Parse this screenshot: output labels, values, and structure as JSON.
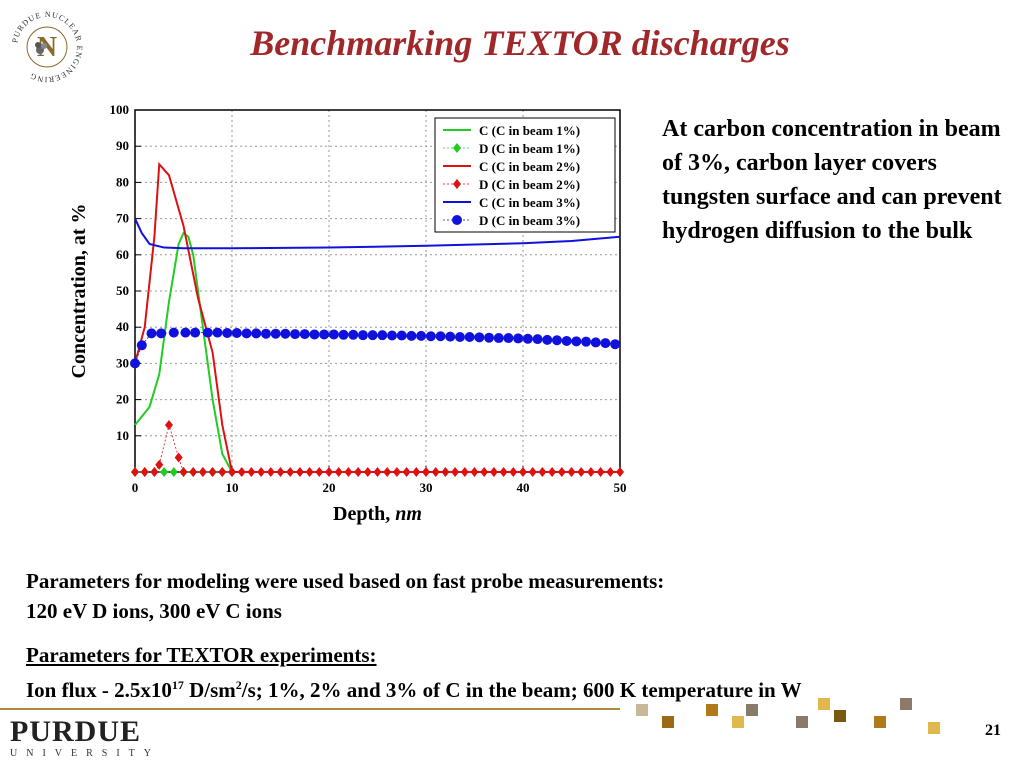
{
  "title": "Benchmarking TEXTOR discharges",
  "logo": {
    "ring_text": "PURDUE NUCLEAR ENGINEERING",
    "letter": "N"
  },
  "side_text": "At carbon concentration in beam of 3%, carbon layer covers tungsten surface and can prevent hydrogen diffusion to the bulk",
  "params1": {
    "line1": "Parameters for modeling were used based on fast probe measurements:",
    "line2": "120 eV D ions, 300 eV C ions"
  },
  "params2": {
    "heading": "Parameters for TEXTOR experiments:",
    "flux_prefix": "Ion flux  - 2.5x10",
    "flux_exp": "17",
    "flux_unit": " D/sm",
    "flux_unit_exp": "2",
    "flux_rest": "/s; 1%, 2% and 3% of C in the beam; 600 K temperature in W"
  },
  "footer": {
    "brand": "PURDUE",
    "sub": "UNIVERSITY",
    "page": "21"
  },
  "colors": {
    "title": "#a0282a",
    "green": "#22cc22",
    "red": "#dd1111",
    "blue": "#1111dd",
    "footer_gold": "#b08a3a"
  },
  "chart_data": {
    "type": "line",
    "xlabel": "Depth, nm",
    "ylabel": "Concentration, at %",
    "xlim": [
      0,
      50
    ],
    "ylim": [
      0,
      100
    ],
    "xticks": [
      0,
      10,
      20,
      30,
      40,
      50
    ],
    "yticks": [
      10,
      20,
      30,
      40,
      50,
      60,
      70,
      80,
      90,
      100
    ],
    "grid": true,
    "legend_position": "top-right",
    "series": [
      {
        "name": "C (C in beam 1%)",
        "style": "line",
        "color": "#22cc22",
        "x": [
          0,
          1.5,
          2.5,
          3.5,
          4.5,
          5,
          5.5,
          6,
          7,
          8,
          9,
          10,
          50
        ],
        "y": [
          13,
          18,
          27,
          47,
          63,
          66,
          65,
          60,
          40,
          20,
          5,
          0,
          0
        ]
      },
      {
        "name": "D (C in beam 1%)",
        "style": "markers",
        "marker": "diamond",
        "color": "#22cc22",
        "x": [
          0,
          1,
          2,
          3,
          4,
          5,
          6,
          7,
          8,
          9,
          10
        ],
        "y": [
          0,
          0,
          0,
          0,
          0,
          0,
          0,
          0,
          0,
          0,
          0
        ]
      },
      {
        "name": "C (C in beam 2%)",
        "style": "line",
        "color": "#dd1111",
        "x": [
          0,
          1,
          2,
          2.5,
          3.5,
          5,
          6.5,
          8,
          9,
          10,
          50
        ],
        "y": [
          30,
          40,
          65,
          85,
          82,
          68,
          48,
          33,
          13,
          0,
          0
        ]
      },
      {
        "name": "D (C in beam 2%)",
        "style": "markers",
        "marker": "diamond",
        "color": "#dd1111",
        "x": [
          0,
          1,
          2,
          2.5,
          3.5,
          4.5,
          5,
          6,
          7,
          8,
          9,
          10,
          11,
          12,
          13,
          14,
          15,
          16,
          17,
          18,
          19,
          20,
          21,
          22,
          23,
          24,
          25,
          26,
          27,
          28,
          29,
          30,
          31,
          32,
          33,
          34,
          35,
          36,
          37,
          38,
          39,
          40,
          41,
          42,
          43,
          44,
          45,
          46,
          47,
          48,
          49,
          50
        ],
        "y": [
          0,
          0,
          0,
          2,
          13,
          4,
          0,
          0,
          0,
          0,
          0,
          0,
          0,
          0,
          0,
          0,
          0,
          0,
          0,
          0,
          0,
          0,
          0,
          0,
          0,
          0,
          0,
          0,
          0,
          0,
          0,
          0,
          0,
          0,
          0,
          0,
          0,
          0,
          0,
          0,
          0,
          0,
          0,
          0,
          0,
          0,
          0,
          0,
          0,
          0,
          0,
          0
        ]
      },
      {
        "name": "C (C in beam 3%)",
        "style": "line",
        "color": "#1111dd",
        "x": [
          0,
          0.7,
          1.5,
          3,
          5,
          10,
          20,
          30,
          40,
          45,
          50
        ],
        "y": [
          70,
          66,
          63,
          62,
          61.8,
          61.8,
          62,
          62.5,
          63.2,
          63.8,
          65
        ]
      },
      {
        "name": "D (C in beam 3%)",
        "style": "markers",
        "marker": "circle",
        "color": "#1111dd",
        "x": [
          0,
          0.7,
          1.7,
          2.7,
          4,
          5.2,
          6.2,
          7.5,
          8.5,
          9.5,
          10.5,
          11.5,
          12.5,
          13.5,
          14.5,
          15.5,
          16.5,
          17.5,
          18.5,
          19.5,
          20.5,
          21.5,
          22.5,
          23.5,
          24.5,
          25.5,
          26.5,
          27.5,
          28.5,
          29.5,
          30.5,
          31.5,
          32.5,
          33.5,
          34.5,
          35.5,
          36.5,
          37.5,
          38.5,
          39.5,
          40.5,
          41.5,
          42.5,
          43.5,
          44.5,
          45.5,
          46.5,
          47.5,
          48.5,
          49.5
        ],
        "y": [
          30,
          35,
          38.3,
          38.3,
          38.5,
          38.5,
          38.5,
          38.5,
          38.5,
          38.4,
          38.4,
          38.3,
          38.3,
          38.2,
          38.2,
          38.2,
          38.1,
          38.1,
          38,
          38,
          38,
          37.9,
          37.9,
          37.8,
          37.8,
          37.8,
          37.7,
          37.7,
          37.6,
          37.6,
          37.5,
          37.5,
          37.4,
          37.3,
          37.3,
          37.2,
          37.1,
          37,
          37,
          36.9,
          36.8,
          36.7,
          36.5,
          36.4,
          36.2,
          36.1,
          36,
          35.8,
          35.6,
          35.3
        ]
      }
    ]
  }
}
